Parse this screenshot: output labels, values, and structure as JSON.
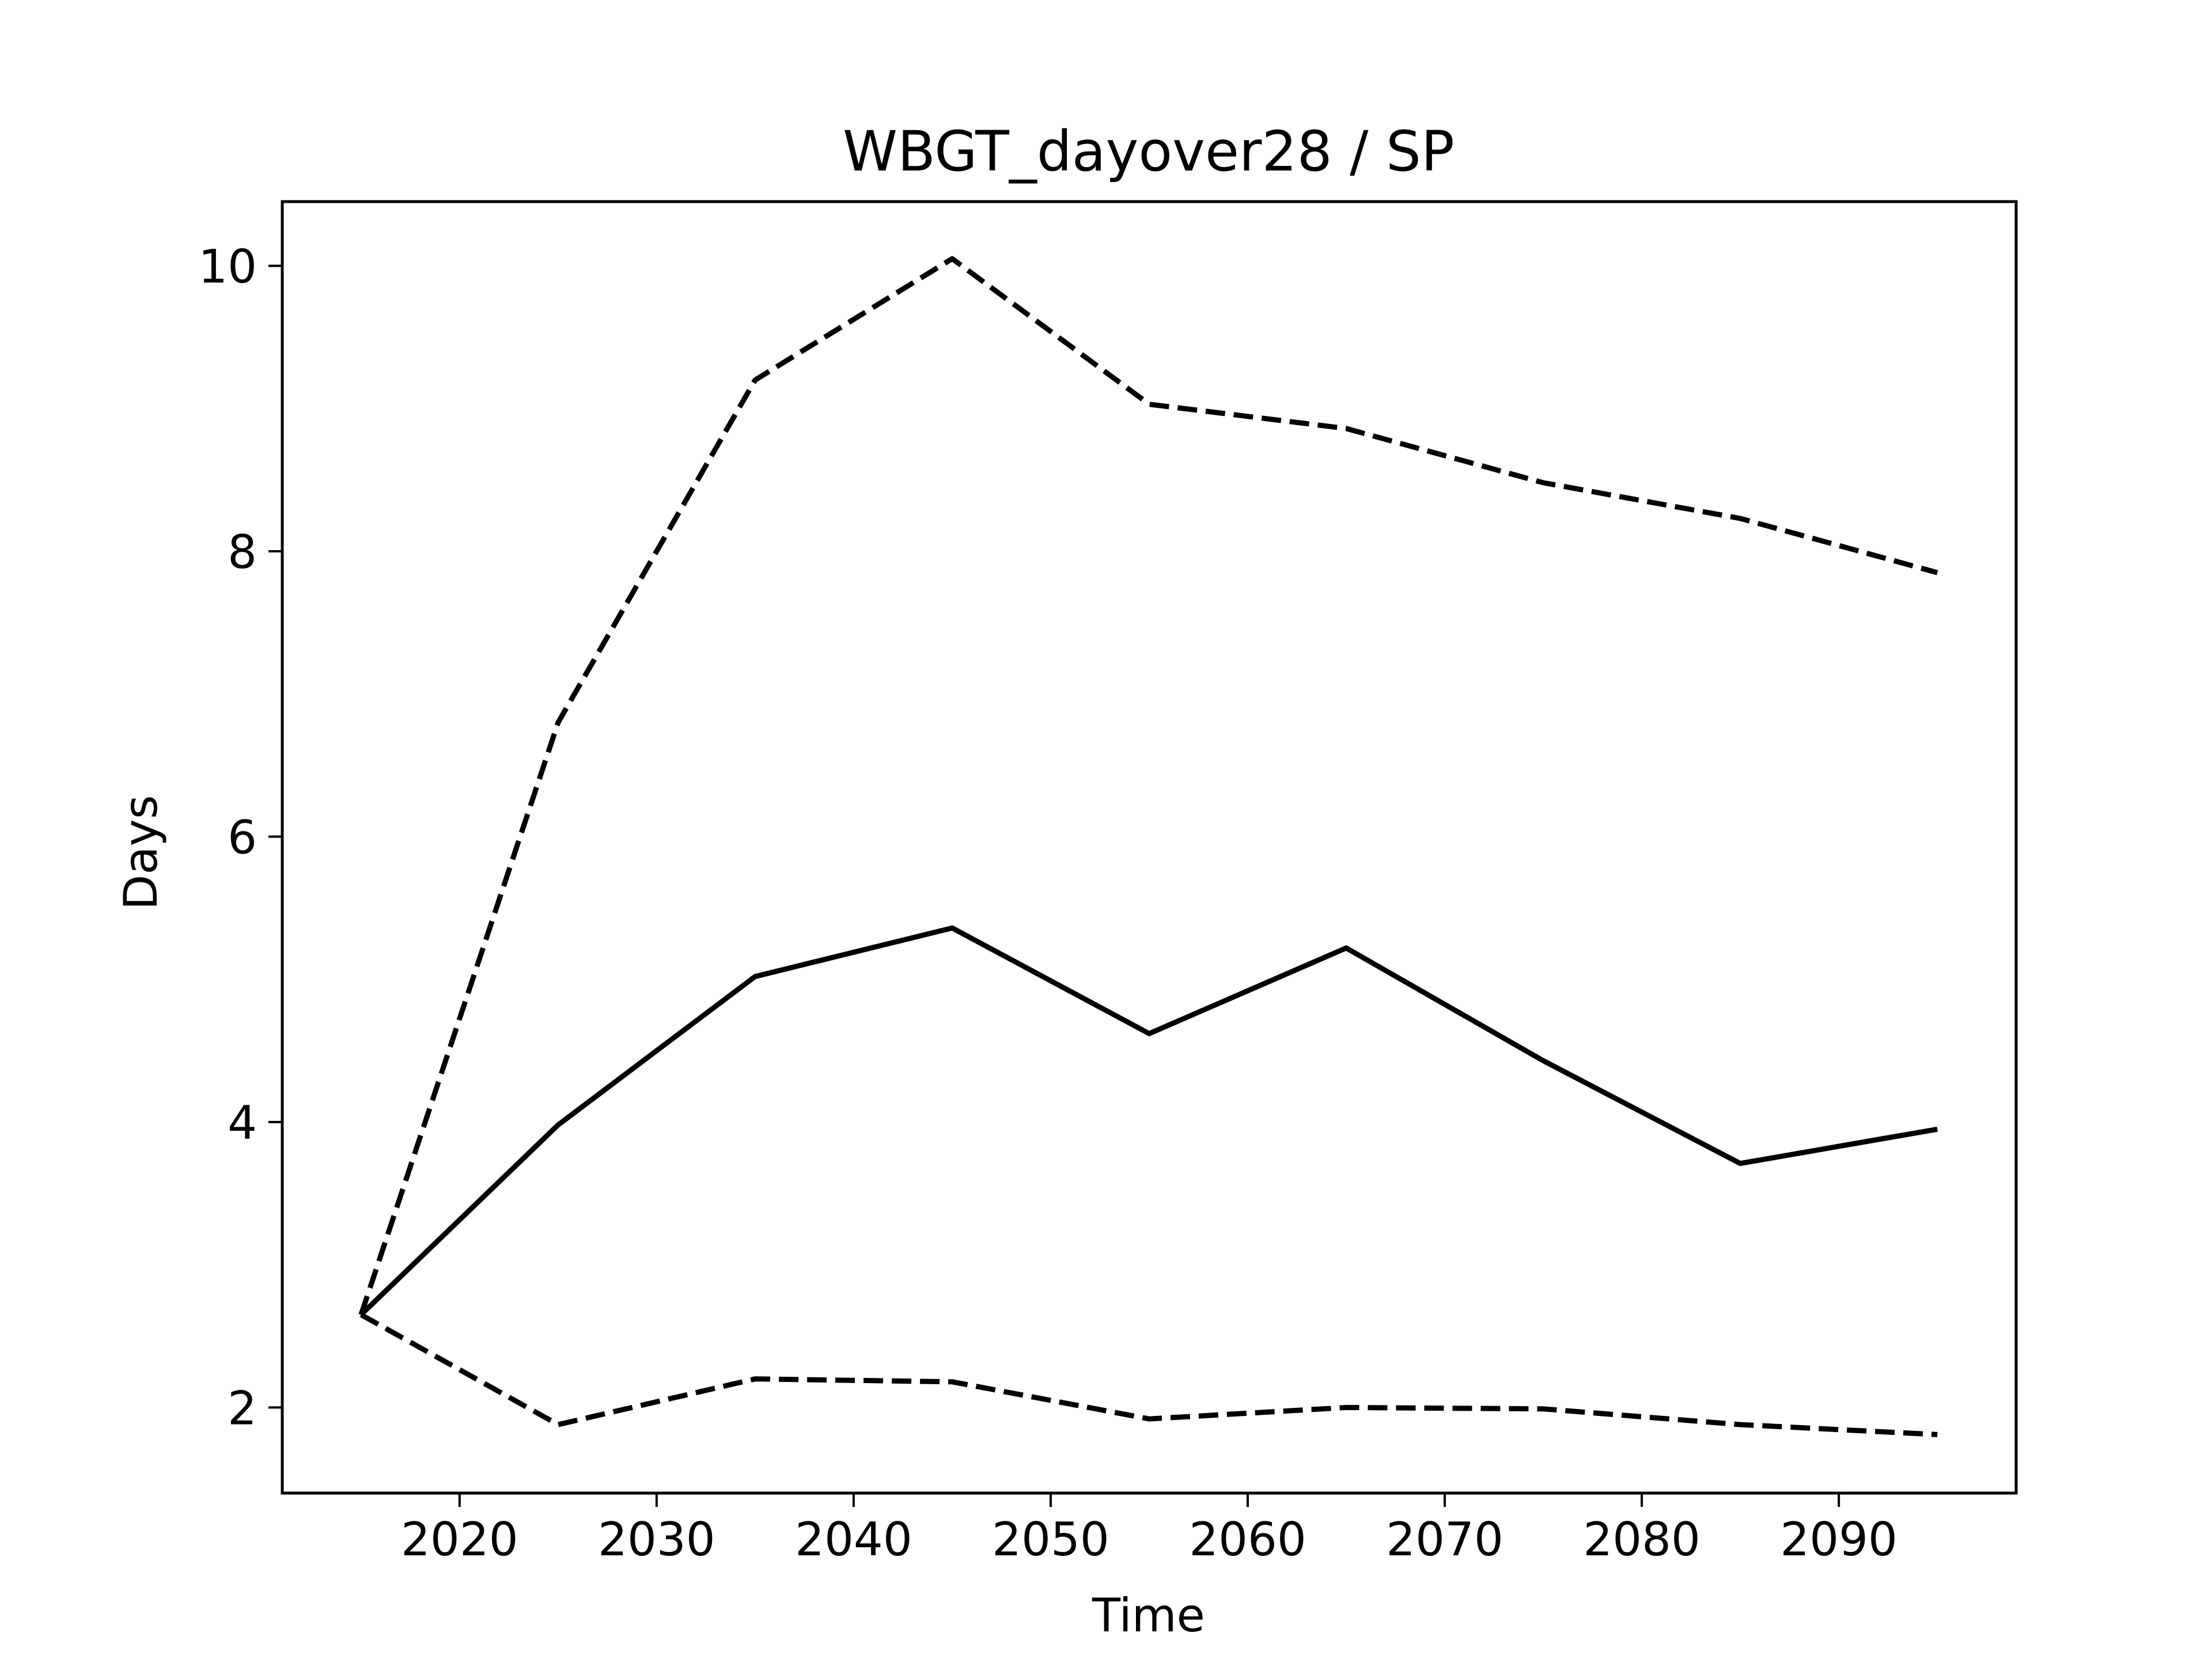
{
  "chart_data": {
    "type": "line",
    "title": "WBGT_dayover28 / SP",
    "xlabel": "Time",
    "ylabel": "Days",
    "x": [
      2015,
      2025,
      2035,
      2045,
      2055,
      2065,
      2075,
      2085,
      2095
    ],
    "xlim": [
      2011,
      2099
    ],
    "ylim": [
      1.4,
      10.45
    ],
    "xticks": [
      2020,
      2030,
      2040,
      2050,
      2060,
      2070,
      2080,
      2090
    ],
    "yticks": [
      2,
      4,
      6,
      8,
      10
    ],
    "grid": false,
    "legend": "none",
    "line_color": "#000000",
    "series": [
      {
        "style": "dashed",
        "values": [
          2.65,
          6.8,
          9.2,
          10.05,
          9.03,
          8.86,
          8.48,
          8.23,
          7.85
        ]
      },
      {
        "style": "solid",
        "values": [
          2.65,
          3.98,
          5.02,
          5.36,
          4.62,
          5.22,
          4.43,
          3.71,
          3.95
        ]
      },
      {
        "style": "dashed",
        "values": [
          2.65,
          1.88,
          2.2,
          2.18,
          1.92,
          2.0,
          1.99,
          1.88,
          1.81
        ]
      }
    ]
  }
}
